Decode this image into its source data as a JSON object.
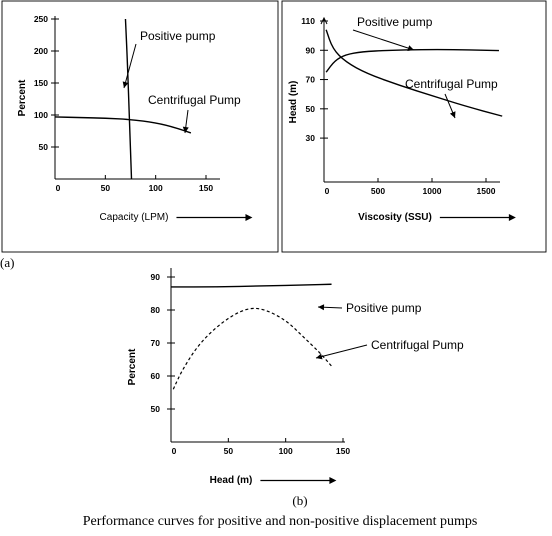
{
  "figure": {
    "tag_a": "(a)",
    "tag_b": "(b)",
    "caption": "Performance curves for positive and non-positive displacement pumps"
  },
  "chart_data": [
    {
      "panel": "a-left",
      "type": "line",
      "xlabel": "Capacity (LPM)",
      "ylabel": "Percent",
      "xlim": [
        0,
        175
      ],
      "ylim": [
        0,
        260
      ],
      "x_ticks": [
        0,
        50,
        100,
        150
      ],
      "y_ticks": [
        50,
        100,
        150,
        200,
        250
      ],
      "grid": false,
      "series": [
        {
          "name": "Positive pump",
          "style": "solid",
          "x": [
            70,
            72,
            74,
            76
          ],
          "y": [
            250,
            180,
            90,
            0
          ]
        },
        {
          "name": "Centrifugal Pump",
          "style": "solid",
          "x": [
            0,
            25,
            50,
            75,
            100,
            120,
            135
          ],
          "y": [
            97,
            96,
            95,
            93,
            88,
            80,
            72
          ]
        }
      ],
      "annotations": [
        {
          "text": "Positive pump",
          "target": "Positive pump"
        },
        {
          "text": "Centrifugal Pump",
          "target": "Centrifugal Pump"
        }
      ]
    },
    {
      "panel": "a-right",
      "type": "line",
      "xlabel": "Viscosity (SSU)",
      "ylabel": "Head (m)",
      "xlim": [
        0,
        1800
      ],
      "ylim": [
        0,
        115
      ],
      "x_ticks": [
        0,
        500,
        1000,
        1500
      ],
      "y_ticks": [
        30,
        50,
        70,
        90,
        110
      ],
      "grid": false,
      "series": [
        {
          "name": "Positive pump",
          "style": "solid",
          "x": [
            20,
            100,
            200,
            350,
            600,
            900,
            1200,
            1500,
            1620
          ],
          "y": [
            75,
            83,
            87,
            89,
            90,
            90.5,
            90.5,
            90,
            89.8
          ]
        },
        {
          "name": "Centrifugal Pump",
          "style": "solid",
          "x": [
            20,
            80,
            200,
            400,
            700,
            1000,
            1300,
            1650
          ],
          "y": [
            104,
            91,
            82,
            74,
            66,
            59,
            52,
            45
          ]
        }
      ],
      "annotations": [
        {
          "text": "Positive pump",
          "target": "Positive pump"
        },
        {
          "text": "Centrifugal Pump",
          "target": "Centrifugal Pump"
        }
      ]
    },
    {
      "panel": "b",
      "type": "line",
      "xlabel": "Head (m)",
      "ylabel": "Percent",
      "xlim": [
        0,
        180
      ],
      "ylim": [
        40,
        93
      ],
      "x_ticks": [
        0,
        50,
        100,
        150
      ],
      "y_ticks": [
        50,
        60,
        70,
        80,
        90
      ],
      "grid": false,
      "series": [
        {
          "name": "Positive pump",
          "style": "solid",
          "x": [
            0,
            40,
            80,
            120,
            140
          ],
          "y": [
            87,
            87,
            87.3,
            87.6,
            87.8
          ]
        },
        {
          "name": "Centrifugal Pump",
          "style": "dashed",
          "x": [
            2,
            10,
            25,
            45,
            65,
            80,
            100,
            115,
            130,
            140
          ],
          "y": [
            56,
            62,
            70,
            76.5,
            80.5,
            80.5,
            77,
            72,
            67,
            63
          ]
        }
      ],
      "annotations": [
        {
          "text": "Positive pump",
          "target": "Positive pump"
        },
        {
          "text": "Centrifugal Pump",
          "target": "Centrifugal Pump"
        }
      ]
    }
  ]
}
